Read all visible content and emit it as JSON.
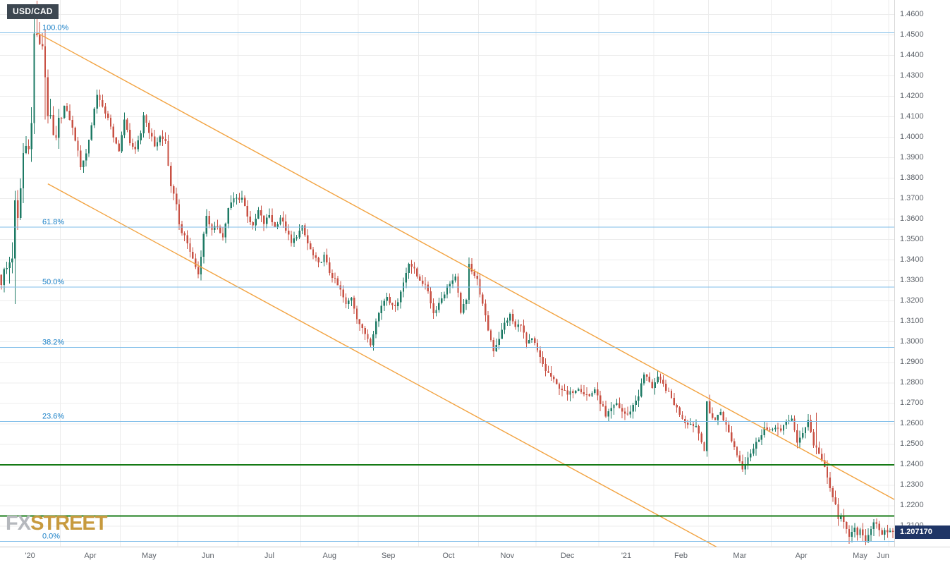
{
  "header": {
    "symbol": "USD/CAD"
  },
  "watermark": {
    "part1": "FX",
    "part2": "STREET"
  },
  "colors": {
    "grid": "#ececec",
    "candle_up": "#1d7a64",
    "candle_down": "#c85043",
    "fib_line": "#7fbde9",
    "fib_label": "#1d82c8",
    "level_line": "#157a15",
    "trendline": "#f2a341",
    "badge_bg": "#1f3566",
    "symbol_badge_bg": "#3d4751",
    "watermark_fx": "#b5b8bd",
    "watermark_street": "#c79a3e",
    "axis_text": "#5f646b"
  },
  "chart_data": {
    "type": "candlestick",
    "symbol": "USD/CAD",
    "timeframe_note": "daily candles, March 2020 - June 2021",
    "current_price": 1.20717,
    "current_price_label": "1.207170",
    "x_axis": {
      "total_candles": 327,
      "months": [
        {
          "label": "'20",
          "start": 0,
          "end": 22
        },
        {
          "label": "Apr",
          "start": 22,
          "end": 44
        },
        {
          "label": "May",
          "start": 44,
          "end": 65
        },
        {
          "label": "Jun",
          "start": 65,
          "end": 87
        },
        {
          "label": "Jul",
          "start": 87,
          "end": 110
        },
        {
          "label": "Aug",
          "start": 110,
          "end": 131
        },
        {
          "label": "Sep",
          "start": 131,
          "end": 153
        },
        {
          "label": "Oct",
          "start": 153,
          "end": 175
        },
        {
          "label": "Nov",
          "start": 175,
          "end": 196
        },
        {
          "label": "Dec",
          "start": 196,
          "end": 219
        },
        {
          "label": "'21",
          "start": 219,
          "end": 239
        },
        {
          "label": "Feb",
          "start": 239,
          "end": 259
        },
        {
          "label": "Mar",
          "start": 259,
          "end": 282
        },
        {
          "label": "Apr",
          "start": 282,
          "end": 304
        },
        {
          "label": "May",
          "start": 304,
          "end": 325
        },
        {
          "label": "Jun",
          "start": 325,
          "end": 327
        }
      ]
    },
    "y_axis": {
      "min": 1.2,
      "max": 1.467,
      "tick_step": 0.01,
      "tick_labels": [
        "1.4600",
        "1.4500",
        "1.4400",
        "1.4300",
        "1.4200",
        "1.4100",
        "1.4000",
        "1.3900",
        "1.3800",
        "1.3700",
        "1.3600",
        "1.3500",
        "1.3400",
        "1.3300",
        "1.3200",
        "1.3100",
        "1.3000",
        "1.2900",
        "1.2800",
        "1.2700",
        "1.2600",
        "1.2500",
        "1.2400",
        "1.2300",
        "1.2200",
        "1.2100"
      ]
    },
    "fibonacci_levels": [
      {
        "label": "100.0%",
        "value": 1.451
      },
      {
        "label": "61.8%",
        "value": 1.3561
      },
      {
        "label": "50.0%",
        "value": 1.3268
      },
      {
        "label": "38.2%",
        "value": 1.2974
      },
      {
        "label": "23.6%",
        "value": 1.2611
      },
      {
        "label": "0.0%",
        "value": 1.2025
      }
    ],
    "horizontal_levels": [
      {
        "name": "support-1.2400",
        "value": 1.24
      },
      {
        "name": "support-1.2150",
        "value": 1.215
      }
    ],
    "trendlines": [
      {
        "name": "descending-channel-upper",
        "from": [
          13,
          1.451
        ],
        "to": [
          327,
          1.2227
        ]
      },
      {
        "name": "descending-channel-lower",
        "from": [
          17,
          1.3772
        ],
        "to": [
          262,
          1.1995
        ]
      }
    ],
    "price_path_anchors": [
      [
        0,
        1.331
      ],
      [
        2,
        1.3355
      ],
      [
        4,
        1.343
      ],
      [
        5,
        1.366
      ],
      [
        6,
        1.358
      ],
      [
        8,
        1.392
      ],
      [
        10,
        1.399
      ],
      [
        11,
        1.406
      ],
      [
        12,
        1.4496
      ],
      [
        13,
        1.451
      ],
      [
        14,
        1.442
      ],
      [
        15,
        1.446
      ],
      [
        16,
        1.43
      ],
      [
        17,
        1.413
      ],
      [
        18,
        1.406
      ],
      [
        19,
        1.399
      ],
      [
        20,
        1.396
      ],
      [
        21,
        1.406
      ],
      [
        23,
        1.415
      ],
      [
        25,
        1.409
      ],
      [
        27,
        1.399
      ],
      [
        29,
        1.386
      ],
      [
        31,
        1.392
      ],
      [
        33,
        1.406
      ],
      [
        35,
        1.4215
      ],
      [
        37,
        1.414
      ],
      [
        39,
        1.41
      ],
      [
        41,
        1.399
      ],
      [
        43,
        1.394
      ],
      [
        45,
        1.408
      ],
      [
        47,
        1.398
      ],
      [
        49,
        1.393
      ],
      [
        51,
        1.402
      ],
      [
        52,
        1.411
      ],
      [
        54,
        1.403
      ],
      [
        56,
        1.396
      ],
      [
        58,
        1.4
      ],
      [
        60,
        1.398
      ],
      [
        62,
        1.375
      ],
      [
        64,
        1.368
      ],
      [
        65,
        1.357
      ],
      [
        68,
        1.348
      ],
      [
        72,
        1.333
      ],
      [
        75,
        1.362
      ],
      [
        77,
        1.354
      ],
      [
        79,
        1.357
      ],
      [
        81,
        1.351
      ],
      [
        83,
        1.365
      ],
      [
        85,
        1.37
      ],
      [
        88,
        1.3705
      ],
      [
        90,
        1.362
      ],
      [
        92,
        1.356
      ],
      [
        94,
        1.364
      ],
      [
        96,
        1.358
      ],
      [
        98,
        1.362
      ],
      [
        100,
        1.356
      ],
      [
        102,
        1.361
      ],
      [
        104,
        1.355
      ],
      [
        106,
        1.348
      ],
      [
        108,
        1.352
      ],
      [
        110,
        1.356
      ],
      [
        112,
        1.348
      ],
      [
        114,
        1.342
      ],
      [
        116,
        1.338
      ],
      [
        118,
        1.342
      ],
      [
        120,
        1.334
      ],
      [
        122,
        1.33
      ],
      [
        124,
        1.325
      ],
      [
        126,
        1.318
      ],
      [
        128,
        1.322
      ],
      [
        130,
        1.312
      ],
      [
        132,
        1.306
      ],
      [
        134,
        1.302
      ],
      [
        135,
        1.2995
      ],
      [
        137,
        1.31
      ],
      [
        139,
        1.318
      ],
      [
        141,
        1.323
      ],
      [
        143,
        1.317
      ],
      [
        145,
        1.32
      ],
      [
        147,
        1.329
      ],
      [
        149,
        1.339
      ],
      [
        151,
        1.335
      ],
      [
        152,
        1.332
      ],
      [
        154,
        1.329
      ],
      [
        156,
        1.325
      ],
      [
        158,
        1.314
      ],
      [
        160,
        1.319
      ],
      [
        162,
        1.324
      ],
      [
        164,
        1.329
      ],
      [
        166,
        1.331
      ],
      [
        168,
        1.315
      ],
      [
        170,
        1.32
      ],
      [
        171,
        1.339
      ],
      [
        172,
        1.335
      ],
      [
        174,
        1.33
      ],
      [
        176,
        1.318
      ],
      [
        178,
        1.306
      ],
      [
        180,
        1.296
      ],
      [
        182,
        1.302
      ],
      [
        184,
        1.309
      ],
      [
        186,
        1.313
      ],
      [
        188,
        1.307
      ],
      [
        190,
        1.309
      ],
      [
        192,
        1.299
      ],
      [
        194,
        1.301
      ],
      [
        195,
        1.299
      ],
      [
        197,
        1.292
      ],
      [
        199,
        1.286
      ],
      [
        201,
        1.283
      ],
      [
        203,
        1.279
      ],
      [
        205,
        1.277
      ],
      [
        207,
        1.274
      ],
      [
        209,
        1.276
      ],
      [
        211,
        1.278
      ],
      [
        213,
        1.275
      ],
      [
        215,
        1.2735
      ],
      [
        217,
        1.277
      ],
      [
        218,
        1.273
      ],
      [
        220,
        1.268
      ],
      [
        221,
        1.263
      ],
      [
        223,
        1.267
      ],
      [
        225,
        1.27
      ],
      [
        227,
        1.266
      ],
      [
        229,
        1.264
      ],
      [
        231,
        1.269
      ],
      [
        233,
        1.274
      ],
      [
        235,
        1.284
      ],
      [
        237,
        1.281
      ],
      [
        238,
        1.278
      ],
      [
        240,
        1.282
      ],
      [
        242,
        1.279
      ],
      [
        244,
        1.275
      ],
      [
        246,
        1.27
      ],
      [
        248,
        1.265
      ],
      [
        250,
        1.261
      ],
      [
        252,
        1.26
      ],
      [
        254,
        1.259
      ],
      [
        256,
        1.252
      ],
      [
        257,
        1.247
      ],
      [
        258,
        1.27
      ],
      [
        259,
        1.265
      ],
      [
        261,
        1.262
      ],
      [
        263,
        1.266
      ],
      [
        265,
        1.259
      ],
      [
        267,
        1.252
      ],
      [
        269,
        1.245
      ],
      [
        271,
        1.2385
      ],
      [
        273,
        1.244
      ],
      [
        275,
        1.248
      ],
      [
        277,
        1.253
      ],
      [
        279,
        1.258
      ],
      [
        281,
        1.256
      ],
      [
        283,
        1.259
      ],
      [
        285,
        1.256
      ],
      [
        287,
        1.261
      ],
      [
        289,
        1.263
      ],
      [
        291,
        1.25
      ],
      [
        293,
        1.256
      ],
      [
        295,
        1.262
      ],
      [
        297,
        1.25
      ],
      [
        299,
        1.246
      ],
      [
        301,
        1.238
      ],
      [
        303,
        1.2285
      ],
      [
        305,
        1.22
      ],
      [
        306,
        1.213
      ],
      [
        307,
        1.216
      ],
      [
        308,
        1.211
      ],
      [
        310,
        1.2045
      ],
      [
        311,
        1.208
      ],
      [
        312,
        1.21
      ],
      [
        313,
        1.2065
      ],
      [
        314,
        1.208
      ],
      [
        316,
        1.2013
      ],
      [
        317,
        1.206
      ],
      [
        318,
        1.208
      ],
      [
        319,
        1.211
      ],
      [
        320,
        1.212
      ],
      [
        321,
        1.208
      ],
      [
        322,
        1.206
      ],
      [
        323,
        1.209
      ],
      [
        324,
        1.2075
      ],
      [
        325,
        1.208
      ],
      [
        326,
        1.20717
      ]
    ],
    "extremes": {
      "5": {
        "low": 1.3185
      },
      "12": {
        "high": 1.46
      },
      "13": {
        "high": 1.4667
      },
      "16": {
        "low": 1.4086
      },
      "257": {
        "low": 1.2468
      },
      "271": {
        "low": 1.2365
      },
      "298": {
        "high": 1.2654
      },
      "303": {
        "low": 1.2268
      },
      "310": {
        "low": 1.2013
      },
      "316": {
        "low": 1.2007
      }
    },
    "volatility": {
      "high_vol_until_index": 22,
      "jitter_high": 0.01,
      "jitter_normal": 0.0022,
      "wick_high": 0.0085,
      "wick_normal": 0.0035
    }
  }
}
